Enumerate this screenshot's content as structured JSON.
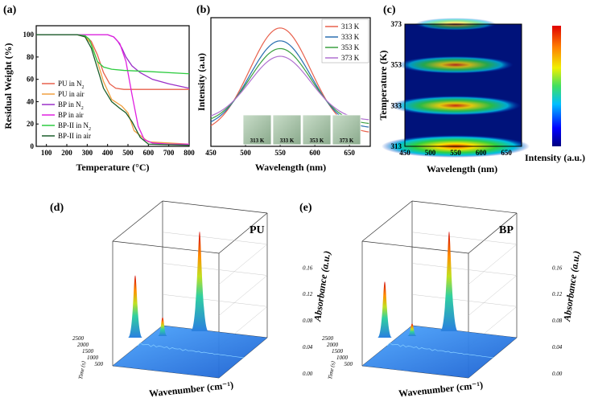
{
  "chart_data": [
    {
      "panel": "(a)",
      "type": "line",
      "xlabel": "Temperature (°C)",
      "ylabel": "Residual Weight (%)",
      "xlim": [
        50,
        800
      ],
      "ylim": [
        0,
        108
      ],
      "xticks": [
        "100",
        "200",
        "300",
        "400",
        "500",
        "600",
        "700",
        "800"
      ],
      "yticks": [
        "0",
        "20",
        "40",
        "60",
        "80",
        "100"
      ],
      "series": [
        {
          "name": "PU in N",
          "sub": "2",
          "color": "#e8604c",
          "x": [
            50,
            250,
            290,
            320,
            350,
            380,
            410,
            440,
            480,
            550,
            650,
            800
          ],
          "y": [
            100,
            100,
            99,
            94,
            82,
            66,
            56,
            52,
            51,
            51,
            51,
            51
          ]
        },
        {
          "name": "PU in air",
          "sub": "",
          "color": "#f0a040",
          "x": [
            50,
            250,
            290,
            320,
            350,
            380,
            420,
            470,
            500,
            530,
            600,
            800
          ],
          "y": [
            100,
            100,
            98,
            92,
            76,
            58,
            42,
            36,
            30,
            14,
            4,
            2
          ]
        },
        {
          "name": "BP in N",
          "sub": "2",
          "color": "#9b30c8",
          "x": [
            50,
            400,
            430,
            450,
            470,
            490,
            520,
            560,
            620,
            700,
            800
          ],
          "y": [
            100,
            100,
            98,
            94,
            88,
            80,
            72,
            66,
            60,
            56,
            52
          ]
        },
        {
          "name": "BP in air",
          "sub": "",
          "color": "#e020e0",
          "x": [
            50,
            400,
            430,
            460,
            490,
            520,
            550,
            580,
            620,
            700,
            800
          ],
          "y": [
            100,
            100,
            98,
            92,
            76,
            46,
            18,
            6,
            3,
            2,
            2
          ]
        },
        {
          "name": "BP-II in N",
          "sub": "2",
          "color": "#2ecc40",
          "x": [
            50,
            250,
            290,
            310,
            330,
            350,
            380,
            420,
            480,
            600,
            800
          ],
          "y": [
            100,
            100,
            99,
            96,
            86,
            76,
            71,
            69,
            68,
            67,
            65
          ]
        },
        {
          "name": "BP-II in air",
          "sub": "",
          "color": "#1a5e2a",
          "x": [
            50,
            250,
            290,
            320,
            350,
            380,
            420,
            460,
            490,
            520,
            560,
            600,
            800
          ],
          "y": [
            100,
            100,
            98,
            88,
            70,
            52,
            40,
            34,
            30,
            22,
            8,
            2,
            1
          ]
        }
      ]
    },
    {
      "panel": "(b)",
      "type": "line",
      "xlabel": "Wavelength (nm)",
      "ylabel": "Intensity (a.u)",
      "xlim": [
        450,
        680
      ],
      "ylim": [
        0,
        1
      ],
      "xticks": [
        "450",
        "500",
        "550",
        "600",
        "650"
      ],
      "series": [
        {
          "name": "313 K",
          "color": "#e8604c",
          "peak": 0.92,
          "base": 0.1
        },
        {
          "name": "333 K",
          "color": "#2a6fb0",
          "peak": 0.82,
          "base": 0.14
        },
        {
          "name": "353 K",
          "color": "#3aa040",
          "peak": 0.76,
          "base": 0.17
        },
        {
          "name": "373 K",
          "color": "#b070d0",
          "peak": 0.7,
          "base": 0.2
        }
      ],
      "inset_labels": [
        "313 K",
        "333 K",
        "353 K",
        "373 K"
      ]
    },
    {
      "panel": "(c)",
      "type": "heatmap",
      "xlabel": "Wavelength (nm)",
      "ylabel": "Temperature (K)",
      "colorbar_label": "Intensity (a.u.)",
      "xlim": [
        450,
        680
      ],
      "ylim": [
        313,
        373
      ],
      "xticks": [
        "450",
        "500",
        "550",
        "600",
        "650"
      ],
      "yticks": [
        "313",
        "333",
        "353",
        "373"
      ],
      "band_levels": [
        1.0,
        0.88,
        0.78,
        0.55
      ]
    },
    {
      "panel": "(d)",
      "type": "surface",
      "inset_label": "PU",
      "zlabel": "Absorbance (a.u.)",
      "xlabel": "Wavenumber (cm⁻¹)",
      "ylabel": "Time (s)",
      "zticks": [
        "0.00",
        "0.04",
        "0.08",
        "0.12",
        "0.16"
      ],
      "yticks": [
        "500",
        "1000",
        "1500",
        "2000",
        "2500"
      ],
      "peaks": [
        0.1,
        0.16,
        0.03
      ]
    },
    {
      "panel": "(e)",
      "type": "surface",
      "inset_label": "BP",
      "zlabel": "Absorbance (a.u.)",
      "xlabel": "Wavenumber (cm⁻¹)",
      "ylabel": "Time (s)",
      "zticks": [
        "0.00",
        "0.04",
        "0.08",
        "0.12",
        "0.16"
      ],
      "yticks": [
        "500",
        "1000",
        "1500",
        "2000",
        "2500"
      ],
      "peaks": [
        0.09,
        0.16,
        0.02
      ]
    }
  ],
  "colors": {
    "axis": "#000000"
  }
}
